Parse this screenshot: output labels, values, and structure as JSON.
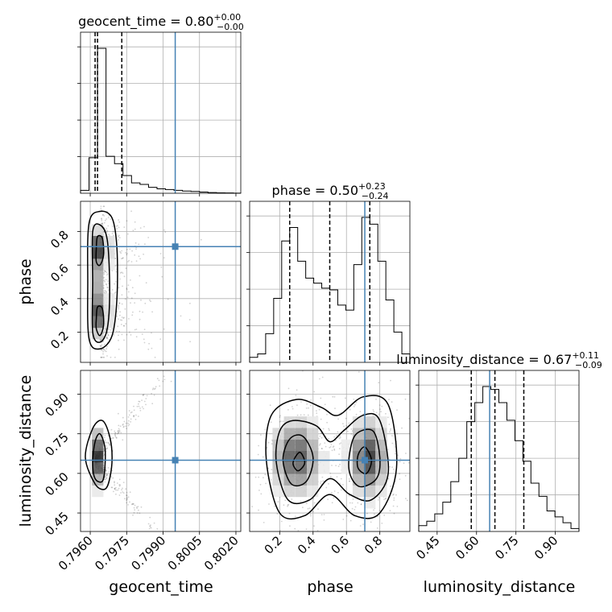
{
  "chart_data": {
    "type": "corner",
    "parameters": [
      "geocent_time",
      "phase",
      "luminosity_distance"
    ],
    "truths": {
      "geocent_time": 0.7995,
      "phase": 0.71,
      "luminosity_distance": 0.65
    },
    "titles": [
      {
        "param": "geocent_time",
        "text": "geocent_time = 0.80",
        "plus": "+0.00",
        "minus": "−0.00"
      },
      {
        "param": "phase",
        "text": "phase = 0.50",
        "plus": "+0.23",
        "minus": "−0.24"
      },
      {
        "param": "luminosity_distance",
        "text": "luminosity_distance = 0.67",
        "plus": "+0.11",
        "minus": "−0.09"
      }
    ],
    "axis_labels": {
      "x": [
        "geocent_time",
        "phase",
        "luminosity_distance"
      ],
      "y": [
        "phase",
        "luminosity_distance"
      ]
    },
    "ticks": {
      "geocent_time": [
        "0.7960",
        "0.7975",
        "0.7990",
        "0.8005",
        "0.8020"
      ],
      "phase": [
        "0.2",
        "0.4",
        "0.6",
        "0.8"
      ],
      "luminosity_distance": [
        "0.45",
        "0.60",
        "0.75",
        "0.90"
      ]
    },
    "ranges": {
      "geocent_time": [
        0.7956,
        0.8022
      ],
      "phase": [
        0.02,
        0.98
      ],
      "luminosity_distance": [
        0.38,
        0.99
      ]
    },
    "quantiles": {
      "geocent_time": [
        0.7962,
        0.7963,
        0.7973
      ],
      "phase": [
        0.26,
        0.5,
        0.74
      ],
      "luminosity_distance": [
        0.58,
        0.67,
        0.78
      ]
    },
    "histograms": {
      "geocent_time": {
        "edges": [
          0.7956,
          0.79595,
          0.7963,
          0.79665,
          0.797,
          0.79735,
          0.7977,
          0.79805,
          0.7984,
          0.79875,
          0.7991,
          0.79945,
          0.7998,
          0.80015,
          0.8005,
          0.80085,
          0.8012,
          0.80155,
          0.8019,
          0.8022
        ],
        "counts": [
          0.02,
          0.24,
          0.98,
          0.25,
          0.2,
          0.12,
          0.07,
          0.06,
          0.04,
          0.03,
          0.025,
          0.02,
          0.015,
          0.012,
          0.008,
          0.005,
          0.003,
          0.002,
          0.001
        ]
      },
      "phase": {
        "edges": [
          0.02,
          0.068,
          0.116,
          0.164,
          0.212,
          0.26,
          0.308,
          0.356,
          0.404,
          0.452,
          0.5,
          0.548,
          0.596,
          0.644,
          0.692,
          0.74,
          0.788,
          0.836,
          0.884,
          0.932,
          0.98
        ],
        "counts": [
          0.03,
          0.05,
          0.17,
          0.38,
          0.72,
          0.8,
          0.6,
          0.5,
          0.47,
          0.44,
          0.43,
          0.34,
          0.31,
          0.58,
          0.86,
          0.82,
          0.6,
          0.37,
          0.18,
          0.05
        ]
      },
      "luminosity_distance": {
        "edges": [
          0.38,
          0.4105,
          0.441,
          0.4715,
          0.502,
          0.5325,
          0.563,
          0.5935,
          0.624,
          0.6545,
          0.685,
          0.7155,
          0.746,
          0.7765,
          0.807,
          0.8375,
          0.868,
          0.8985,
          0.929,
          0.9595,
          0.99
        ],
        "counts": [
          0.04,
          0.07,
          0.12,
          0.2,
          0.34,
          0.5,
          0.75,
          0.88,
          0.99,
          0.97,
          0.88,
          0.76,
          0.62,
          0.48,
          0.33,
          0.24,
          0.14,
          0.1,
          0.06,
          0.02
        ]
      }
    },
    "contours": {
      "geocent_time-phase": [
        [
          [
            0.79595,
            0.16
          ],
          [
            0.7964,
            0.1
          ],
          [
            0.7969,
            0.18
          ],
          [
            0.7971,
            0.4
          ],
          [
            0.7971,
            0.7
          ],
          [
            0.7969,
            0.88
          ],
          [
            0.7964,
            0.92
          ],
          [
            0.79595,
            0.85
          ],
          [
            0.7959,
            0.5
          ]
        ],
        [
          [
            0.7961,
            0.2
          ],
          [
            0.7964,
            0.14
          ],
          [
            0.7967,
            0.22
          ],
          [
            0.7968,
            0.45
          ],
          [
            0.7967,
            0.75
          ],
          [
            0.7964,
            0.84
          ],
          [
            0.7961,
            0.8
          ],
          [
            0.7961,
            0.5
          ]
        ],
        [
          [
            0.79625,
            0.62
          ],
          [
            0.7964,
            0.6
          ],
          [
            0.79655,
            0.66
          ],
          [
            0.7965,
            0.76
          ],
          [
            0.7963,
            0.77
          ],
          [
            0.79625,
            0.7
          ]
        ],
        [
          [
            0.79625,
            0.22
          ],
          [
            0.7964,
            0.18
          ],
          [
            0.79655,
            0.24
          ],
          [
            0.7965,
            0.34
          ],
          [
            0.7963,
            0.35
          ],
          [
            0.79625,
            0.28
          ]
        ]
      ],
      "geocent_time-luminosity_distance": [
        [
          [
            0.7958,
            0.66
          ],
          [
            0.7962,
            0.56
          ],
          [
            0.7966,
            0.54
          ],
          [
            0.7968,
            0.58
          ],
          [
            0.7969,
            0.66
          ],
          [
            0.7968,
            0.74
          ],
          [
            0.7965,
            0.8
          ],
          [
            0.7961,
            0.77
          ]
        ],
        [
          [
            0.7961,
            0.64
          ],
          [
            0.7962,
            0.58
          ],
          [
            0.7965,
            0.57
          ],
          [
            0.7966,
            0.62
          ],
          [
            0.7966,
            0.7
          ],
          [
            0.7964,
            0.75
          ],
          [
            0.7962,
            0.72
          ]
        ]
      ],
      "phase-luminosity_distance": [
        [
          [
            0.12,
            0.65
          ],
          [
            0.2,
            0.45
          ],
          [
            0.35,
            0.44
          ],
          [
            0.5,
            0.52
          ],
          [
            0.65,
            0.44
          ],
          [
            0.8,
            0.45
          ],
          [
            0.9,
            0.62
          ],
          [
            0.85,
            0.86
          ],
          [
            0.7,
            0.89
          ],
          [
            0.55,
            0.82
          ],
          [
            0.45,
            0.85
          ],
          [
            0.3,
            0.88
          ],
          [
            0.15,
            0.82
          ]
        ],
        [
          [
            0.18,
            0.64
          ],
          [
            0.25,
            0.5
          ],
          [
            0.38,
            0.5
          ],
          [
            0.5,
            0.58
          ],
          [
            0.62,
            0.52
          ],
          [
            0.75,
            0.5
          ],
          [
            0.85,
            0.6
          ],
          [
            0.8,
            0.8
          ],
          [
            0.7,
            0.82
          ],
          [
            0.58,
            0.76
          ],
          [
            0.5,
            0.72
          ],
          [
            0.42,
            0.78
          ],
          [
            0.28,
            0.8
          ],
          [
            0.2,
            0.76
          ]
        ],
        [
          [
            0.22,
            0.65
          ],
          [
            0.27,
            0.56
          ],
          [
            0.36,
            0.57
          ],
          [
            0.4,
            0.66
          ],
          [
            0.34,
            0.74
          ],
          [
            0.26,
            0.73
          ]
        ],
        [
          [
            0.62,
            0.6
          ],
          [
            0.68,
            0.55
          ],
          [
            0.78,
            0.58
          ],
          [
            0.8,
            0.66
          ],
          [
            0.76,
            0.76
          ],
          [
            0.66,
            0.75
          ],
          [
            0.62,
            0.68
          ]
        ],
        [
          [
            0.28,
            0.64
          ],
          [
            0.31,
            0.61
          ],
          [
            0.35,
            0.64
          ],
          [
            0.32,
            0.68
          ]
        ],
        [
          [
            0.67,
            0.62
          ],
          [
            0.72,
            0.6
          ],
          [
            0.75,
            0.65
          ],
          [
            0.71,
            0.7
          ],
          [
            0.67,
            0.67
          ]
        ]
      ]
    }
  }
}
